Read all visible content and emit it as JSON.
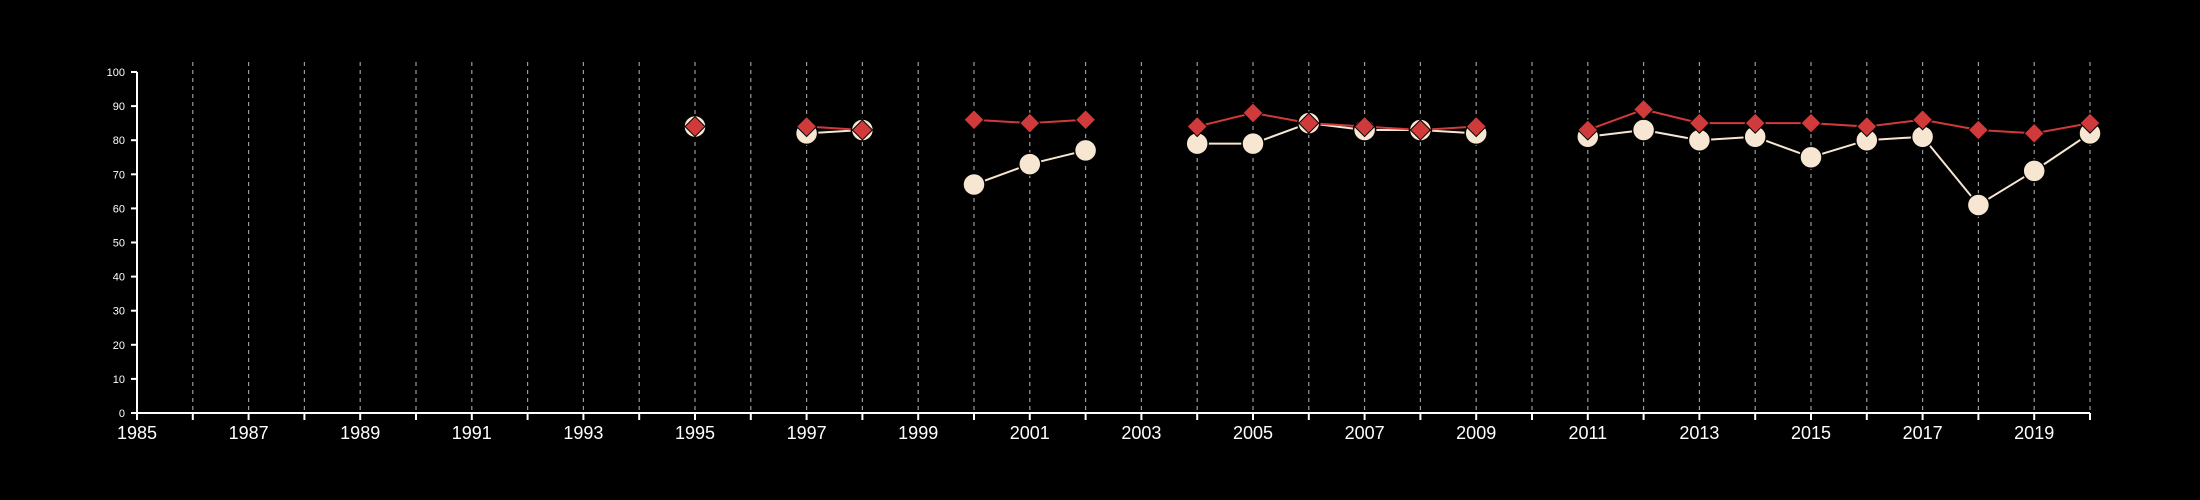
{
  "chart_data": {
    "type": "line",
    "title": "",
    "xlabel": "",
    "ylabel": "",
    "xlim": [
      1985,
      2020
    ],
    "ylim": [
      0,
      100
    ],
    "grid": "vertical dashed lines at each year",
    "legend": "none",
    "x_tick_labels": [
      "1985",
      "1987",
      "1989",
      "1991",
      "1993",
      "1995",
      "1997",
      "1999",
      "2001",
      "2003",
      "2005",
      "2007",
      "2009",
      "2011",
      "2013",
      "2015",
      "2017",
      "2019"
    ],
    "y_tick_labels": [
      "0",
      "10",
      "20",
      "30",
      "40",
      "50",
      "60",
      "70",
      "80",
      "90",
      "100"
    ],
    "series": [
      {
        "color": "#d13a3a",
        "marker": "diamond",
        "points": [
          {
            "x": 1995,
            "y": 84
          },
          {
            "x": 1997,
            "y": 84
          },
          {
            "x": 1998,
            "y": 83
          },
          {
            "x": 2000,
            "y": 86
          },
          {
            "x": 2001,
            "y": 85
          },
          {
            "x": 2002,
            "y": 86
          },
          {
            "x": 2004,
            "y": 84
          },
          {
            "x": 2005,
            "y": 88
          },
          {
            "x": 2006,
            "y": 85
          },
          {
            "x": 2007,
            "y": 84
          },
          {
            "x": 2008,
            "y": 83
          },
          {
            "x": 2009,
            "y": 84
          },
          {
            "x": 2011,
            "y": 83
          },
          {
            "x": 2012,
            "y": 89
          },
          {
            "x": 2013,
            "y": 85
          },
          {
            "x": 2014,
            "y": 85
          },
          {
            "x": 2015,
            "y": 85
          },
          {
            "x": 2016,
            "y": 84
          },
          {
            "x": 2017,
            "y": 86
          },
          {
            "x": 2018,
            "y": 83
          },
          {
            "x": 2019,
            "y": 82
          },
          {
            "x": 2020,
            "y": 85
          }
        ]
      },
      {
        "color": "#f7e6d2",
        "marker": "circle",
        "points": [
          {
            "x": 1995,
            "y": 84
          },
          {
            "x": 1997,
            "y": 82
          },
          {
            "x": 1998,
            "y": 83
          },
          {
            "x": 2000,
            "y": 67
          },
          {
            "x": 2001,
            "y": 73
          },
          {
            "x": 2002,
            "y": 77
          },
          {
            "x": 2004,
            "y": 79
          },
          {
            "x": 2005,
            "y": 79
          },
          {
            "x": 2006,
            "y": 85
          },
          {
            "x": 2007,
            "y": 83
          },
          {
            "x": 2008,
            "y": 83
          },
          {
            "x": 2009,
            "y": 82
          },
          {
            "x": 2011,
            "y": 81
          },
          {
            "x": 2012,
            "y": 83
          },
          {
            "x": 2013,
            "y": 80
          },
          {
            "x": 2014,
            "y": 81
          },
          {
            "x": 2015,
            "y": 75
          },
          {
            "x": 2016,
            "y": 80
          },
          {
            "x": 2017,
            "y": 81
          },
          {
            "x": 2018,
            "y": 61
          },
          {
            "x": 2019,
            "y": 71
          },
          {
            "x": 2020,
            "y": 82
          }
        ]
      }
    ]
  }
}
